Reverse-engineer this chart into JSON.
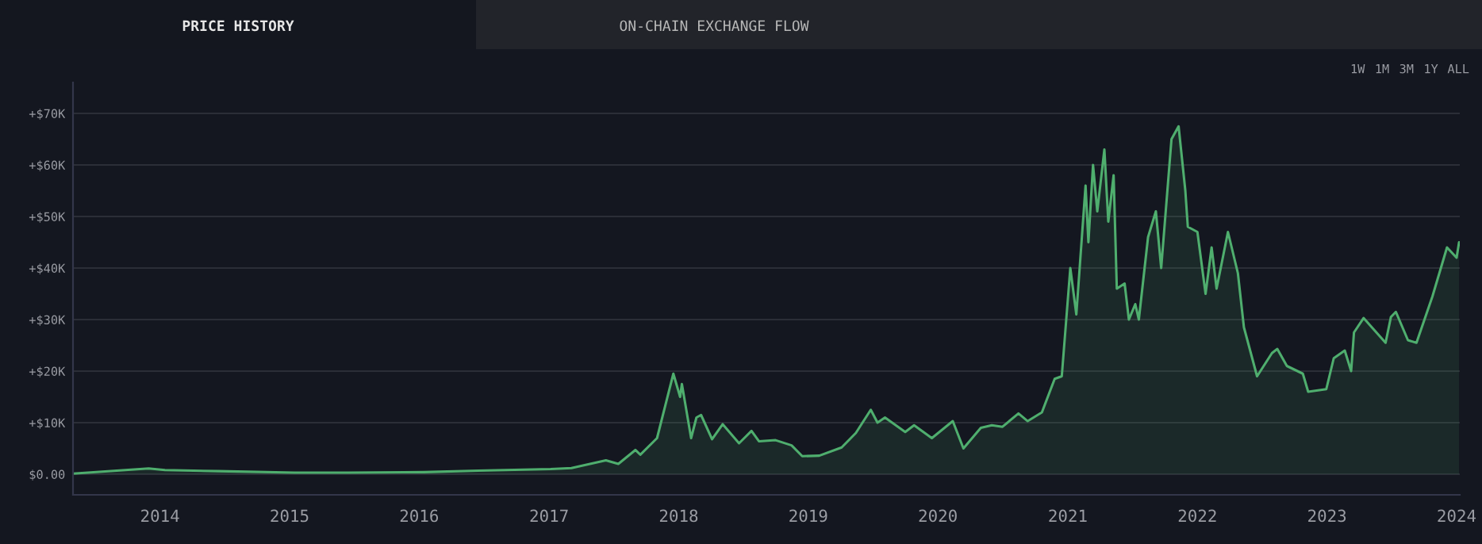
{
  "chart_data": {
    "type": "area",
    "annotations": [
      "PRICE HISTORY",
      "ON-CHAIN EXCHANGE FLOW",
      "1W",
      "1M",
      "3M",
      "1Y",
      "ALL"
    ],
    "x": [
      "2013-05-01",
      "2013-11-30",
      "2014-01-15",
      "2014-06-15",
      "2015-01-15",
      "2015-06-15",
      "2016-01-15",
      "2016-06-15",
      "2017-01-05",
      "2017-03-05",
      "2017-06-10",
      "2017-07-15",
      "2017-09-01",
      "2017-09-15",
      "2017-11-01",
      "2017-12-17",
      "2018-01-05",
      "2018-01-10",
      "2018-02-05",
      "2018-02-20",
      "2018-03-05",
      "2018-04-05",
      "2018-05-05",
      "2018-06-20",
      "2018-07-25",
      "2018-08-15",
      "2018-10-01",
      "2018-11-15",
      "2018-12-15",
      "2019-02-01",
      "2019-04-05",
      "2019-05-15",
      "2019-06-26",
      "2019-07-15",
      "2019-08-05",
      "2019-10-01",
      "2019-10-26",
      "2019-12-15",
      "2020-02-12",
      "2020-03-13",
      "2020-05-01",
      "2020-06-01",
      "2020-07-01",
      "2020-08-15",
      "2020-09-10",
      "2020-10-20",
      "2020-11-25",
      "2020-12-15",
      "2021-01-08",
      "2021-01-25",
      "2021-02-20",
      "2021-02-28",
      "2021-03-13",
      "2021-03-25",
      "2021-04-14",
      "2021-04-25",
      "2021-05-10",
      "2021-05-19",
      "2021-06-10",
      "2021-06-22",
      "2021-07-10",
      "2021-07-20",
      "2021-08-15",
      "2021-09-06",
      "2021-09-21",
      "2021-10-20",
      "2021-11-09",
      "2021-11-28",
      "2021-12-05",
      "2022-01-01",
      "2022-01-24",
      "2022-02-10",
      "2022-02-24",
      "2022-03-28",
      "2022-04-25",
      "2022-05-12",
      "2022-06-18",
      "2022-07-30",
      "2022-08-14",
      "2022-09-10",
      "2022-10-25",
      "2022-11-09",
      "2022-12-30",
      "2023-01-20",
      "2023-02-20",
      "2023-03-10",
      "2023-03-18",
      "2023-04-14",
      "2023-06-15",
      "2023-06-30",
      "2023-07-14",
      "2023-08-17",
      "2023-09-10",
      "2023-10-25",
      "2023-12-05",
      "2024-01-01",
      "2024-01-08"
    ],
    "series": [
      {
        "color": "#4fae6e",
        "values": [
          100,
          1100,
          800,
          600,
          300,
          300,
          400,
          700,
          1000,
          1200,
          2700,
          2000,
          4700,
          3800,
          7000,
          19500,
          15000,
          17500,
          7000,
          11000,
          11500,
          6800,
          9700,
          6000,
          8400,
          6400,
          6600,
          5600,
          3500,
          3600,
          5200,
          8000,
          12500,
          10000,
          11000,
          8200,
          9500,
          7000,
          10300,
          5000,
          9000,
          9500,
          9200,
          11800,
          10300,
          12000,
          18500,
          19000,
          40000,
          31000,
          56000,
          45000,
          60000,
          51000,
          63000,
          49000,
          58000,
          36000,
          37000,
          30000,
          33000,
          30000,
          46000,
          51000,
          40000,
          65000,
          67500,
          55000,
          48000,
          47000,
          35000,
          44000,
          36000,
          47000,
          39000,
          28500,
          19000,
          23500,
          24300,
          21000,
          19500,
          16000,
          16500,
          22500,
          24000,
          20000,
          27500,
          30300,
          25500,
          30500,
          31500,
          26000,
          25500,
          34500,
          44000,
          42000,
          45000
        ]
      }
    ],
    "xlim": [
      "2013-05-01",
      "2024-01-10"
    ],
    "xticks": [
      {
        "value": "2014-01-01",
        "label": "2014"
      },
      {
        "value": "2015-01-01",
        "label": "2015"
      },
      {
        "value": "2016-01-01",
        "label": "2016"
      },
      {
        "value": "2017-01-01",
        "label": "2017"
      },
      {
        "value": "2018-01-01",
        "label": "2018"
      },
      {
        "value": "2019-01-01",
        "label": "2019"
      },
      {
        "value": "2020-01-01",
        "label": "2020"
      },
      {
        "value": "2021-01-01",
        "label": "2021"
      },
      {
        "value": "2022-01-01",
        "label": "2022"
      },
      {
        "value": "2023-01-01",
        "label": "2023"
      },
      {
        "value": "2024-01-01",
        "label": "2024"
      }
    ],
    "ylim": [
      -4000,
      76000
    ],
    "yticks": [
      {
        "value": 0,
        "label": "$0.00"
      },
      {
        "value": 10000,
        "label": "+$10K"
      },
      {
        "value": 20000,
        "label": "+$20K"
      },
      {
        "value": 30000,
        "label": "+$30K"
      },
      {
        "value": 40000,
        "label": "+$40K"
      },
      {
        "value": 50000,
        "label": "+$50K"
      },
      {
        "value": 60000,
        "label": "+$60K"
      },
      {
        "value": 70000,
        "label": "+$70K"
      }
    ],
    "grid": "y"
  }
}
